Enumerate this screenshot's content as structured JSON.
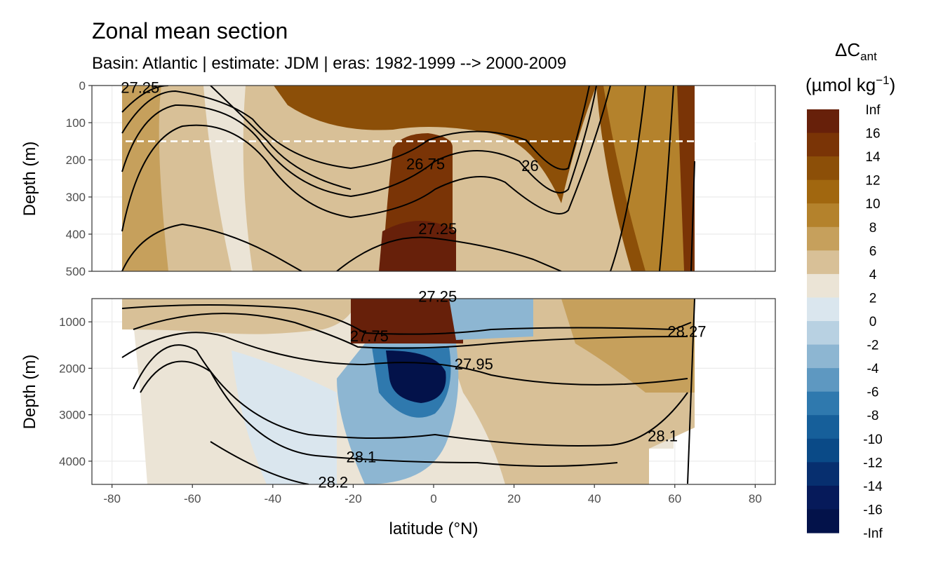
{
  "chart_data": {
    "type": "heatmap",
    "title": "Zonal mean section",
    "subtitle": "Basin: Atlantic | estimate: JDM  | eras: 1982-1999 --> 2000-2009",
    "xlabel": "latitude (°N)",
    "ylabel": "Depth (m)",
    "xlim": [
      -85,
      85
    ],
    "x_ticks": [
      "-80",
      "-60",
      "-40",
      "-20",
      "0",
      "20",
      "40",
      "60",
      "80"
    ],
    "x_tick_values": [
      -80,
      -60,
      -40,
      -20,
      0,
      20,
      40,
      60,
      80
    ],
    "panels": [
      {
        "name": "upper",
        "ylim": [
          0,
          500
        ],
        "y_ticks": [
          "0",
          "100",
          "200",
          "300",
          "400",
          "500"
        ],
        "y_tick_values": [
          0,
          100,
          200,
          300,
          400,
          500
        ],
        "reference_line_depth": 150
      },
      {
        "name": "lower",
        "ylim": [
          500,
          4500
        ],
        "y_ticks": [
          "1000",
          "2000",
          "3000",
          "4000"
        ],
        "y_tick_values": [
          1000,
          2000,
          3000,
          4000
        ]
      }
    ],
    "legend": {
      "title_main": "ΔC",
      "title_sub": "ant",
      "title_unit": "(µmol kg",
      "title_exp": "−1",
      "title_close": ")",
      "breaks": [
        "Inf",
        "16",
        "14",
        "12",
        "10",
        "8",
        "6",
        "4",
        "2",
        "0",
        "-2",
        "-4",
        "-6",
        "-8",
        "-10",
        "-12",
        "-14",
        "-16",
        "-Inf"
      ],
      "colors": [
        "#67200a",
        "#7a3406",
        "#8c4f08",
        "#a1670f",
        "#b4822c",
        "#c6a05c",
        "#d8c097",
        "#ebe4d6",
        "#dae6ee",
        "#b8d1e2",
        "#8db6d2",
        "#5e98c1",
        "#2f79ae",
        "#165f9a",
        "#0a4a87",
        "#072f6f",
        "#061a5a",
        "#03124a"
      ]
    },
    "contour_labels": [
      {
        "text": "27.25",
        "panel": "upper",
        "lat": -73,
        "depth": 5
      },
      {
        "text": "26.75",
        "panel": "upper",
        "lat": -2,
        "depth": 210
      },
      {
        "text": "26",
        "panel": "upper",
        "lat": 24,
        "depth": 215
      },
      {
        "text": "27.25",
        "panel": "upper",
        "lat": 1,
        "depth": 385
      },
      {
        "text": "27.25",
        "panel": "lower",
        "lat": 1,
        "depth": 450
      },
      {
        "text": "27.75",
        "panel": "lower",
        "lat": -16,
        "depth": 1300
      },
      {
        "text": "27.95",
        "panel": "lower",
        "lat": 10,
        "depth": 1900
      },
      {
        "text": "28.1",
        "panel": "lower",
        "lat": -18,
        "depth": 3900
      },
      {
        "text": "28.2",
        "panel": "lower",
        "lat": -25,
        "depth": 4450
      },
      {
        "text": "28.1",
        "panel": "lower",
        "lat": 57,
        "depth": 3450
      },
      {
        "text": "28.27",
        "panel": "lower",
        "lat": 63,
        "depth": 1200
      }
    ]
  }
}
